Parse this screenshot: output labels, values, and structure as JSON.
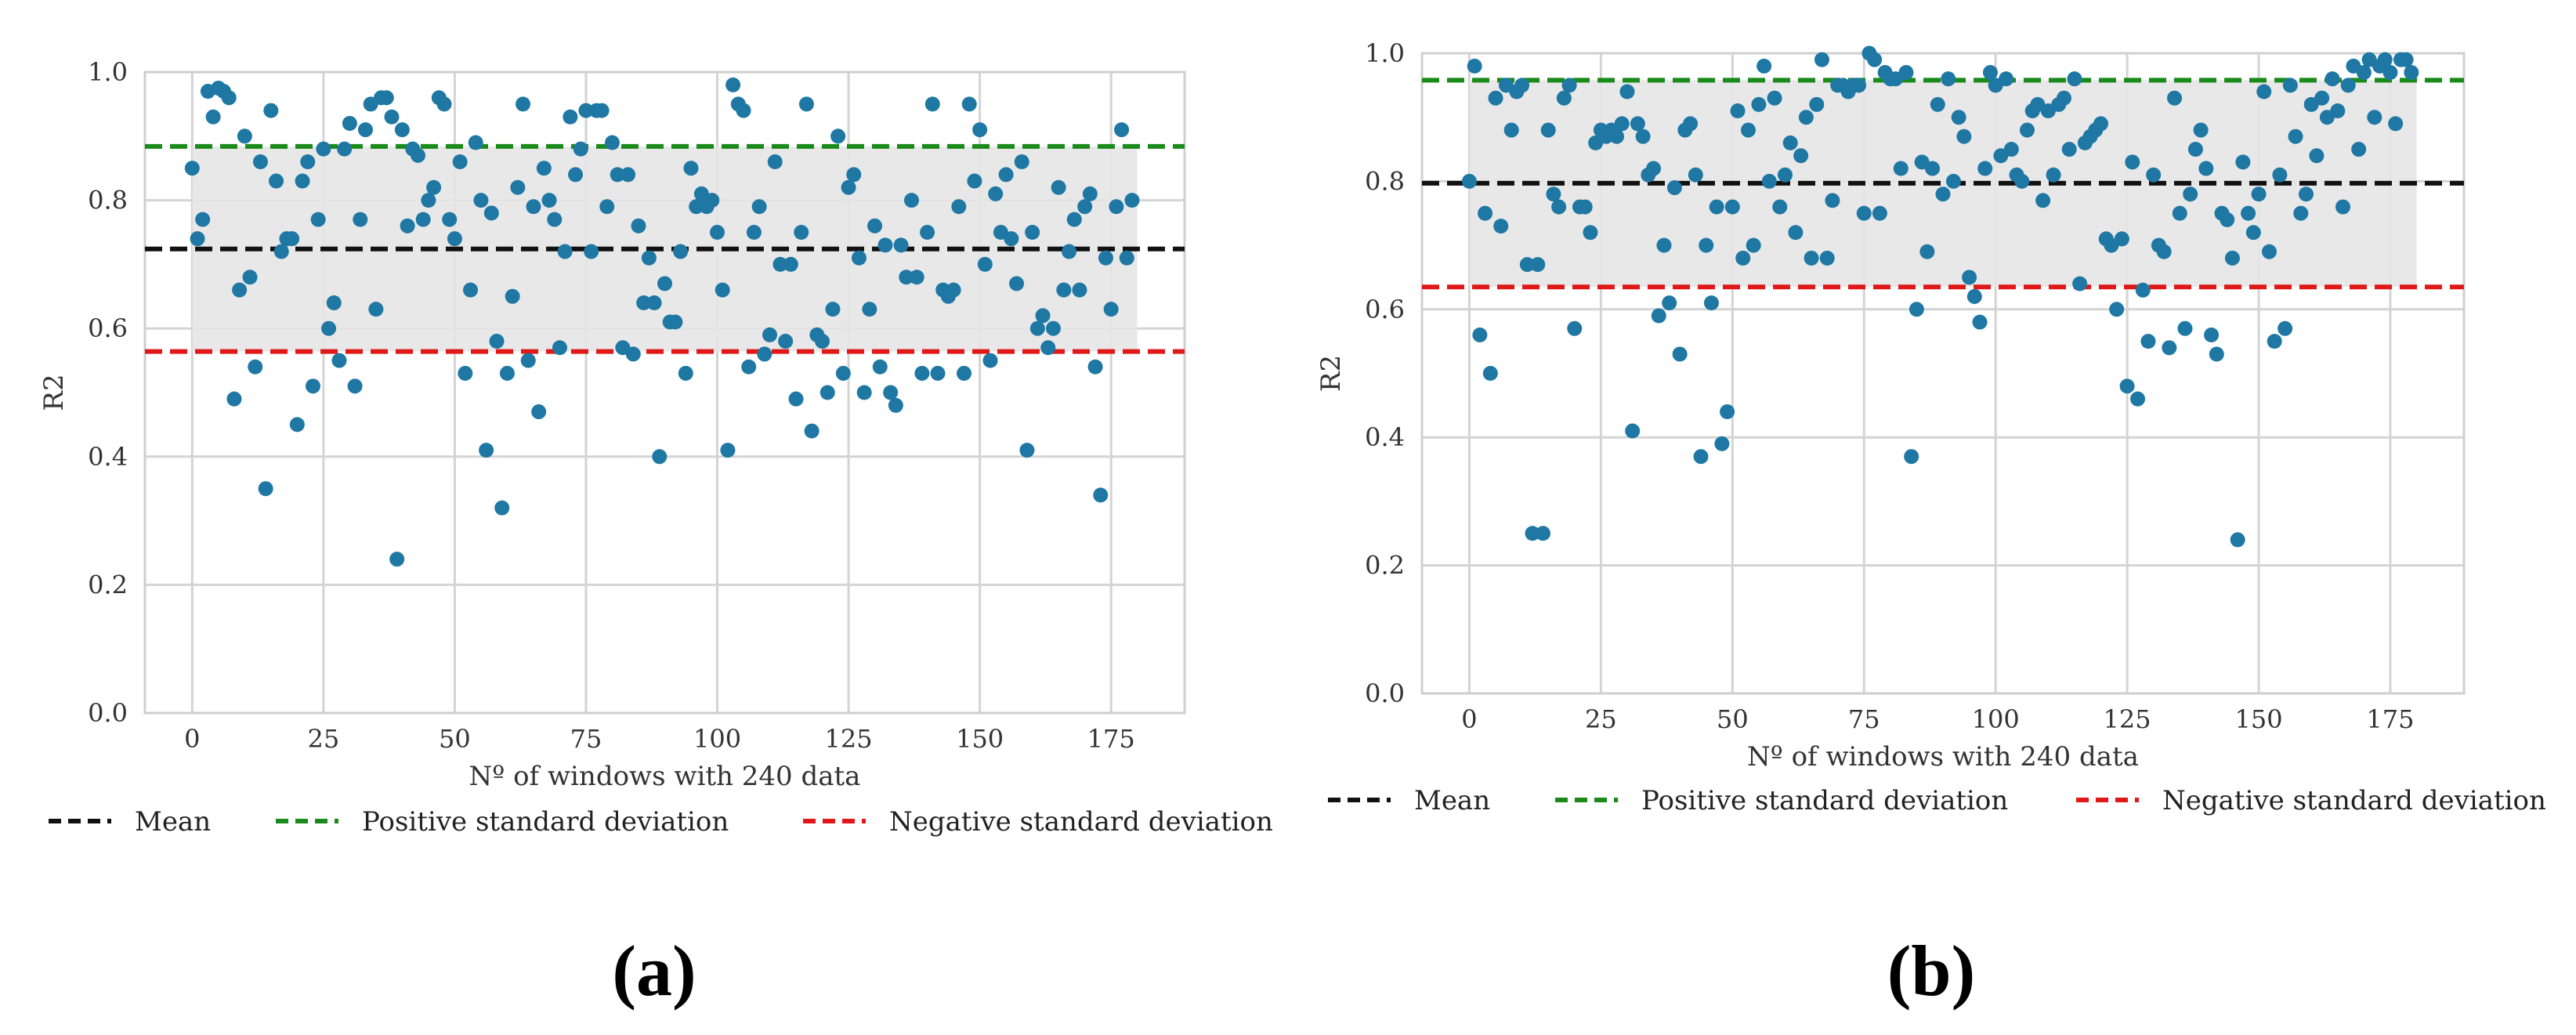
{
  "colors": {
    "points": "#1f77a4",
    "mean": "#111111",
    "positive_sd": "#1a8a1a",
    "negative_sd": "#e01818",
    "band": "#e6e6e6",
    "grid": "#d4d4d4"
  },
  "chart_data": [
    {
      "type": "scatter",
      "panel_label": "(a)",
      "xlabel": "Nº of windows with 240 data",
      "ylabel": "R2",
      "xlim": [
        -9,
        189
      ],
      "ylim": [
        0.0,
        1.0
      ],
      "xticks": [
        0,
        25,
        50,
        75,
        100,
        125,
        150,
        175
      ],
      "yticks": [
        0.0,
        0.2,
        0.4,
        0.6,
        0.8,
        1.0
      ],
      "ytick_labels": [
        "0.0",
        "0.2",
        "0.4",
        "0.6",
        "0.8",
        "1.0"
      ],
      "mean": 0.724,
      "positive_sd": 0.884,
      "negative_sd": 0.564,
      "band_x": [
        0,
        180
      ],
      "legend": [
        "Mean",
        "Positive standard deviation",
        "Negative standard deviation"
      ],
      "x": [
        0,
        1,
        2,
        3,
        4,
        5,
        6,
        7,
        8,
        9,
        10,
        11,
        12,
        13,
        14,
        15,
        16,
        17,
        18,
        19,
        20,
        21,
        22,
        23,
        24,
        25,
        26,
        27,
        28,
        29,
        30,
        31,
        32,
        33,
        34,
        35,
        36,
        37,
        38,
        39,
        40,
        41,
        42,
        43,
        44,
        45,
        46,
        47,
        48,
        49,
        50,
        51,
        52,
        53,
        54,
        55,
        56,
        57,
        58,
        59,
        60,
        61,
        62,
        63,
        64,
        65,
        66,
        67,
        68,
        69,
        70,
        71,
        72,
        73,
        74,
        75,
        76,
        77,
        78,
        79,
        80,
        81,
        82,
        83,
        84,
        85,
        86,
        87,
        88,
        89,
        90,
        91,
        92,
        93,
        94,
        95,
        96,
        97,
        98,
        99,
        100,
        101,
        102,
        103,
        104,
        105,
        106,
        107,
        108,
        109,
        110,
        111,
        112,
        113,
        114,
        115,
        116,
        117,
        118,
        119,
        120,
        121,
        122,
        123,
        124,
        125,
        126,
        127,
        128,
        129,
        130,
        131,
        132,
        133,
        134,
        135,
        136,
        137,
        138,
        139,
        140,
        141,
        142,
        143,
        144,
        145,
        146,
        147,
        148,
        149,
        150,
        151,
        152,
        153,
        154,
        155,
        156,
        157,
        158,
        159,
        160,
        161,
        162,
        163,
        164,
        165,
        166,
        167,
        168,
        169,
        170,
        171,
        172,
        173,
        174,
        175,
        176,
        177,
        178,
        179
      ],
      "y": [
        0.85,
        0.74,
        0.77,
        0.97,
        0.93,
        0.975,
        0.97,
        0.96,
        0.49,
        0.66,
        0.9,
        0.68,
        0.54,
        0.86,
        0.35,
        0.94,
        0.83,
        0.72,
        0.74,
        0.74,
        0.45,
        0.83,
        0.86,
        0.51,
        0.77,
        0.88,
        0.6,
        0.64,
        0.55,
        0.88,
        0.92,
        0.51,
        0.77,
        0.91,
        0.95,
        0.63,
        0.96,
        0.96,
        0.93,
        0.24,
        0.91,
        0.76,
        0.88,
        0.87,
        0.77,
        0.8,
        0.82,
        0.96,
        0.95,
        0.77,
        0.74,
        0.86,
        0.53,
        0.66,
        0.89,
        0.8,
        0.41,
        0.78,
        0.58,
        0.32,
        0.53,
        0.65,
        0.82,
        0.95,
        0.55,
        0.79,
        0.47,
        0.85,
        0.8,
        0.77,
        0.57,
        0.72,
        0.93,
        0.84,
        0.88,
        0.94,
        0.72,
        0.94,
        0.94,
        0.79,
        0.89,
        0.84,
        0.57,
        0.84,
        0.56,
        0.76,
        0.64,
        0.71,
        0.64,
        0.4,
        0.67,
        0.61,
        0.61,
        0.72,
        0.53,
        0.85,
        0.79,
        0.81,
        0.79,
        0.8,
        0.75,
        0.66,
        0.41,
        0.98,
        0.95,
        0.94,
        0.54,
        0.75,
        0.79,
        0.56,
        0.59,
        0.86,
        0.7,
        0.58,
        0.7,
        0.49,
        0.75,
        0.95,
        0.44,
        0.59,
        0.58,
        0.5,
        0.63,
        0.9,
        0.53,
        0.82,
        0.84,
        0.71,
        0.5,
        0.63,
        0.76,
        0.54,
        0.73,
        0.5,
        0.48,
        0.73,
        0.68,
        0.8,
        0.68,
        0.53,
        0.75,
        0.95,
        0.53,
        0.66,
        0.65,
        0.66,
        0.79,
        0.53,
        0.95,
        0.83,
        0.91,
        0.7,
        0.55,
        0.81,
        0.75,
        0.84,
        0.74,
        0.67,
        0.86,
        0.41,
        0.75,
        0.6,
        0.62,
        0.57,
        0.6,
        0.82,
        0.66,
        0.72,
        0.77,
        0.66,
        0.79,
        0.81,
        0.54,
        0.34,
        0.71,
        0.63,
        0.79,
        0.91,
        0.71,
        0.8
      ]
    },
    {
      "type": "scatter",
      "panel_label": "(b)",
      "xlabel": "Nº of windows with 240 data",
      "ylabel": "R2",
      "xlim": [
        -9,
        189
      ],
      "ylim": [
        0.0,
        1.0
      ],
      "xticks": [
        0,
        25,
        50,
        75,
        100,
        125,
        150,
        175
      ],
      "yticks": [
        0.0,
        0.2,
        0.4,
        0.6,
        0.8,
        1.0
      ],
      "ytick_labels": [
        "0.0",
        "0.2",
        "0.4",
        "0.6",
        "0.8",
        "1.0"
      ],
      "mean": 0.797,
      "positive_sd": 0.958,
      "negative_sd": 0.635,
      "band_x": [
        0,
        180
      ],
      "legend": [
        "Mean",
        "Positive standard deviation",
        "Negative standard deviation"
      ],
      "x": [
        0,
        1,
        2,
        3,
        4,
        5,
        6,
        7,
        8,
        9,
        10,
        11,
        12,
        13,
        14,
        15,
        16,
        17,
        18,
        19,
        20,
        21,
        22,
        23,
        24,
        25,
        26,
        27,
        28,
        29,
        30,
        31,
        32,
        33,
        34,
        35,
        36,
        37,
        38,
        39,
        40,
        41,
        42,
        43,
        44,
        45,
        46,
        47,
        48,
        49,
        50,
        51,
        52,
        53,
        54,
        55,
        56,
        57,
        58,
        59,
        60,
        61,
        62,
        63,
        64,
        65,
        66,
        67,
        68,
        69,
        70,
        71,
        72,
        73,
        74,
        75,
        76,
        77,
        78,
        79,
        80,
        81,
        82,
        83,
        84,
        85,
        86,
        87,
        88,
        89,
        90,
        91,
        92,
        93,
        94,
        95,
        96,
        97,
        98,
        99,
        100,
        101,
        102,
        103,
        104,
        105,
        106,
        107,
        108,
        109,
        110,
        111,
        112,
        113,
        114,
        115,
        116,
        117,
        118,
        119,
        120,
        121,
        122,
        123,
        124,
        125,
        126,
        127,
        128,
        129,
        130,
        131,
        132,
        133,
        134,
        135,
        136,
        137,
        138,
        139,
        140,
        141,
        142,
        143,
        144,
        145,
        146,
        147,
        148,
        149,
        150,
        151,
        152,
        153,
        154,
        155,
        156,
        157,
        158,
        159,
        160,
        161,
        162,
        163,
        164,
        165,
        166,
        167,
        168,
        169,
        170,
        171,
        172,
        173,
        174,
        175,
        176,
        177,
        178,
        179
      ],
      "y": [
        0.8,
        0.98,
        0.56,
        0.75,
        0.5,
        0.93,
        0.73,
        0.95,
        0.88,
        0.94,
        0.95,
        0.67,
        0.25,
        0.67,
        0.25,
        0.88,
        0.78,
        0.76,
        0.93,
        0.95,
        0.57,
        0.76,
        0.76,
        0.72,
        0.86,
        0.88,
        0.87,
        0.88,
        0.87,
        0.89,
        0.94,
        0.41,
        0.89,
        0.87,
        0.81,
        0.82,
        0.59,
        0.7,
        0.61,
        0.79,
        0.53,
        0.88,
        0.89,
        0.81,
        0.37,
        0.7,
        0.61,
        0.76,
        0.39,
        0.44,
        0.76,
        0.91,
        0.68,
        0.88,
        0.7,
        0.92,
        0.98,
        0.8,
        0.93,
        0.76,
        0.81,
        0.86,
        0.72,
        0.84,
        0.9,
        0.68,
        0.92,
        0.99,
        0.68,
        0.77,
        0.95,
        0.95,
        0.94,
        0.95,
        0.95,
        0.75,
        1.0,
        0.99,
        0.75,
        0.97,
        0.96,
        0.96,
        0.82,
        0.97,
        0.37,
        0.6,
        0.83,
        0.69,
        0.82,
        0.92,
        0.78,
        0.96,
        0.8,
        0.9,
        0.87,
        0.65,
        0.62,
        0.58,
        0.82,
        0.97,
        0.95,
        0.84,
        0.96,
        0.85,
        0.81,
        0.8,
        0.88,
        0.91,
        0.92,
        0.77,
        0.91,
        0.81,
        0.92,
        0.93,
        0.85,
        0.96,
        0.64,
        0.86,
        0.87,
        0.88,
        0.89,
        0.71,
        0.7,
        0.6,
        0.71,
        0.48,
        0.83,
        0.46,
        0.63,
        0.55,
        0.81,
        0.7,
        0.69,
        0.54,
        0.93,
        0.75,
        0.57,
        0.78,
        0.85,
        0.88,
        0.82,
        0.56,
        0.53,
        0.75,
        0.74,
        0.68,
        0.24,
        0.83,
        0.75,
        0.72,
        0.78,
        0.94,
        0.69,
        0.55,
        0.81,
        0.57,
        0.95,
        0.87,
        0.75,
        0.78,
        0.92,
        0.84,
        0.93,
        0.9,
        0.96,
        0.91,
        0.76,
        0.95,
        0.98,
        0.85,
        0.97,
        0.99,
        0.9,
        0.98,
        0.99,
        0.97,
        0.89,
        0.99,
        0.99,
        0.97
      ]
    }
  ]
}
